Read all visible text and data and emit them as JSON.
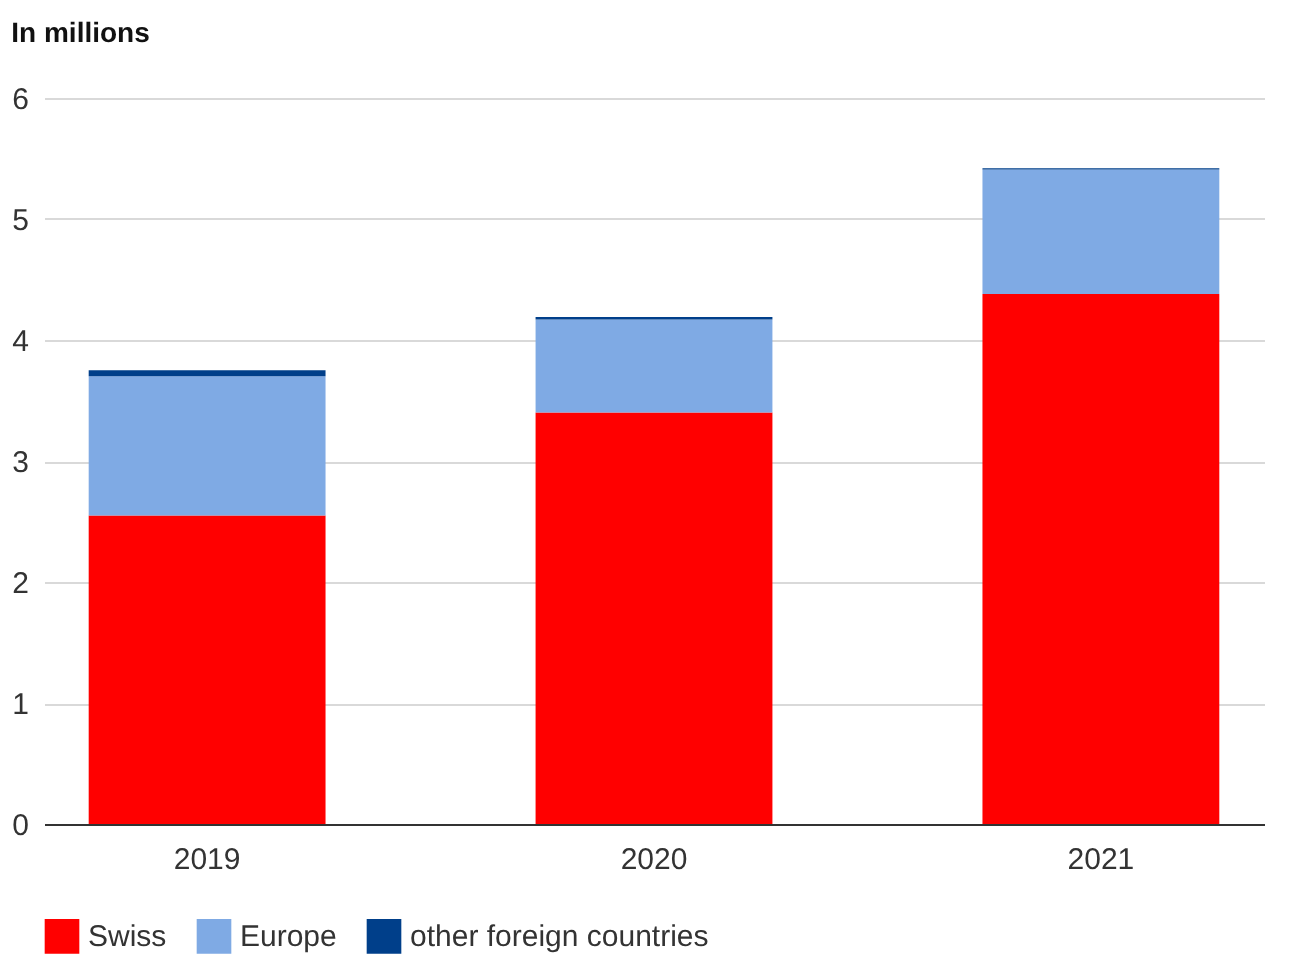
{
  "chart_data": {
    "type": "bar",
    "ylabel": "In millions",
    "categories": [
      "2019",
      "2020",
      "2021"
    ],
    "stacked": true,
    "series": [
      {
        "name": "Swiss",
        "color": "#ff0000",
        "values": [
          2.55,
          3.4,
          4.38
        ]
      },
      {
        "name": "Europe",
        "color": "#7faae4",
        "values": [
          1.15,
          0.77,
          1.03
        ]
      },
      {
        "name": "other foreign countries",
        "color": "#003f8a",
        "values": [
          0.05,
          0.02,
          0.01
        ]
      }
    ],
    "ylim": [
      0,
      6
    ],
    "yticks": [
      0,
      1,
      2,
      3,
      4,
      5,
      6
    ],
    "grid": "y",
    "legend": "bottom"
  }
}
